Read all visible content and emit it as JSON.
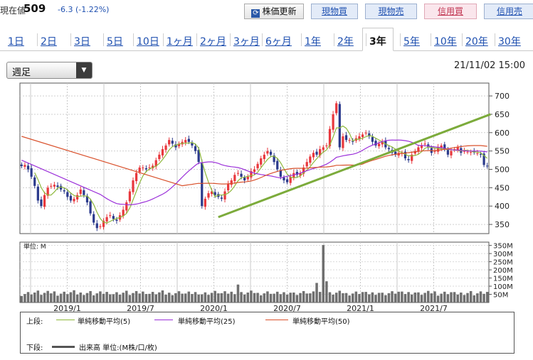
{
  "header": {
    "price_label": "現在値",
    "price_value": "509",
    "price_change": "-6.3 (-1.22%)",
    "buttons": {
      "refresh": "株価更新",
      "spot_buy": "現物買",
      "spot_sell": "現物売",
      "margin_buy": "信用買",
      "margin_sell": "信用売"
    }
  },
  "periods": [
    "1日",
    "2日",
    "3日",
    "5日",
    "10日",
    "1ヶ月",
    "2ヶ月",
    "3ヶ月",
    "6ヶ月",
    "1年",
    "2年",
    "3年",
    "5年",
    "10年",
    "20年",
    "30年"
  ],
  "active_period": "3年",
  "interval_select": "週足",
  "datetime": "21/11/02 15:00",
  "colors": {
    "up": "#e8383d",
    "down": "#2b3a8c",
    "ma5": "#8db83a",
    "ma25": "#9b30d9",
    "ma50": "#d9512c",
    "trend": "#7cab3b",
    "volume": "#6f6f6f"
  },
  "chart_data": {
    "type": "candlestick",
    "price_axis": {
      "ticks": [
        350,
        400,
        450,
        500,
        550,
        600,
        650,
        700
      ],
      "range": [
        325,
        735
      ]
    },
    "volume_axis": {
      "unit_label": "単位: M",
      "ticks": [
        "350M",
        "300M",
        "250M",
        "200M",
        "150M",
        "100M",
        "50M"
      ],
      "tick_values": [
        350,
        300,
        250,
        200,
        150,
        100,
        50
      ],
      "range": [
        0,
        370
      ]
    },
    "x_axis": {
      "tick_labels": [
        "2019/1",
        "2019/7",
        "2020/1",
        "2020/7",
        "2021/1",
        "2021/7"
      ]
    },
    "weeks": 143,
    "close": [
      509,
      512,
      500,
      480,
      455,
      415,
      400,
      430,
      450,
      455,
      458,
      452,
      445,
      440,
      425,
      415,
      420,
      430,
      445,
      430,
      410,
      380,
      355,
      340,
      345,
      360,
      370,
      375,
      365,
      360,
      375,
      390,
      410,
      440,
      470,
      490,
      505,
      505,
      500,
      505,
      510,
      525,
      540,
      555,
      565,
      580,
      570,
      560,
      570,
      575,
      580,
      575,
      565,
      550,
      520,
      400,
      420,
      435,
      440,
      430,
      425,
      420,
      440,
      460,
      470,
      485,
      490,
      480,
      470,
      480,
      495,
      500,
      515,
      530,
      540,
      550,
      540,
      520,
      500,
      480,
      470,
      465,
      480,
      490,
      485,
      490,
      505,
      520,
      535,
      545,
      540,
      555,
      560,
      565,
      610,
      650,
      680,
      560,
      590,
      580,
      580,
      575,
      585,
      590,
      595,
      600,
      590,
      575,
      565,
      570,
      575,
      560,
      555,
      545,
      540,
      545,
      545,
      530,
      525,
      540,
      550,
      560,
      565,
      570,
      560,
      545,
      550,
      560,
      565,
      555,
      540,
      550,
      555,
      560,
      545,
      550,
      548,
      547,
      546,
      544,
      540,
      512,
      509
    ],
    "trendline": {
      "start": {
        "week": 60,
        "price": 370
      },
      "end": {
        "week": 143,
        "price": 650
      }
    },
    "legend": {
      "top_label": "上段:",
      "ma5": "単純移動平均(5)",
      "ma25": "単純移動平均(25)",
      "ma50": "単純移動平均(50)",
      "bottom_label": "下段:",
      "volume": "出来高 単位:(M株/口/枚)"
    }
  }
}
